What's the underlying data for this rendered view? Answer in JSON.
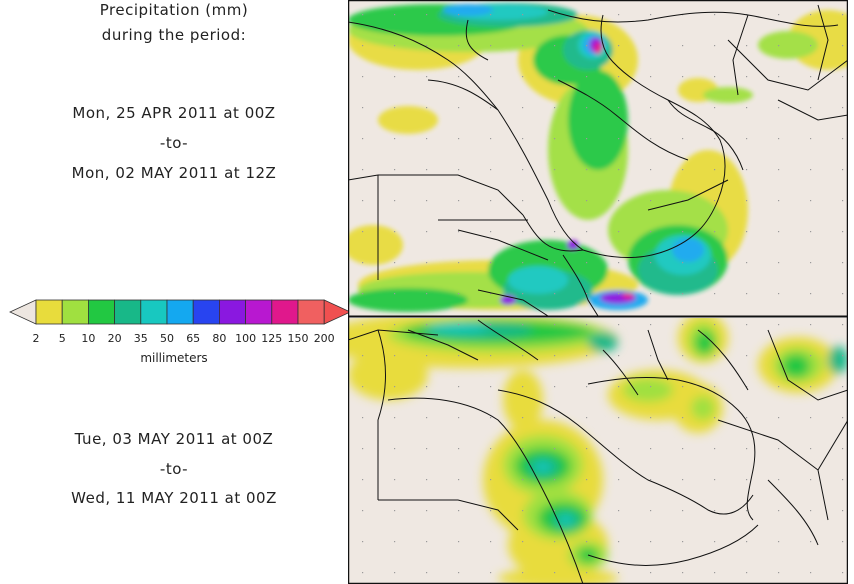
{
  "header": {
    "line1": "Precipitation (mm)",
    "line2": "during the period:"
  },
  "period1": {
    "start": "Mon, 25 APR 2011 at 00Z",
    "sep": "-to-",
    "end": "Mon, 02 MAY 2011 at 12Z"
  },
  "period2": {
    "start": "Tue, 03 MAY 2011 at 00Z",
    "sep": "-to-",
    "end": "Wed, 11 MAY 2011 at 00Z"
  },
  "legend": {
    "unit": "millimeters",
    "ticks": [
      "2",
      "5",
      "10",
      "20",
      "35",
      "50",
      "65",
      "80",
      "100",
      "125",
      "150",
      "200"
    ],
    "colors": [
      "#e8dc3c",
      "#a0e040",
      "#22c842",
      "#18b888",
      "#18c8c0",
      "#14a8f0",
      "#2844f0",
      "#8a18e0",
      "#b818d0",
      "#e0188c",
      "#f06060"
    ],
    "below_color": "#ede6e0",
    "above_color": "#f05050"
  },
  "map": {
    "land_color": "#efe8e2",
    "line_color": "#111111",
    "dot_color": "#9a9a9a"
  }
}
